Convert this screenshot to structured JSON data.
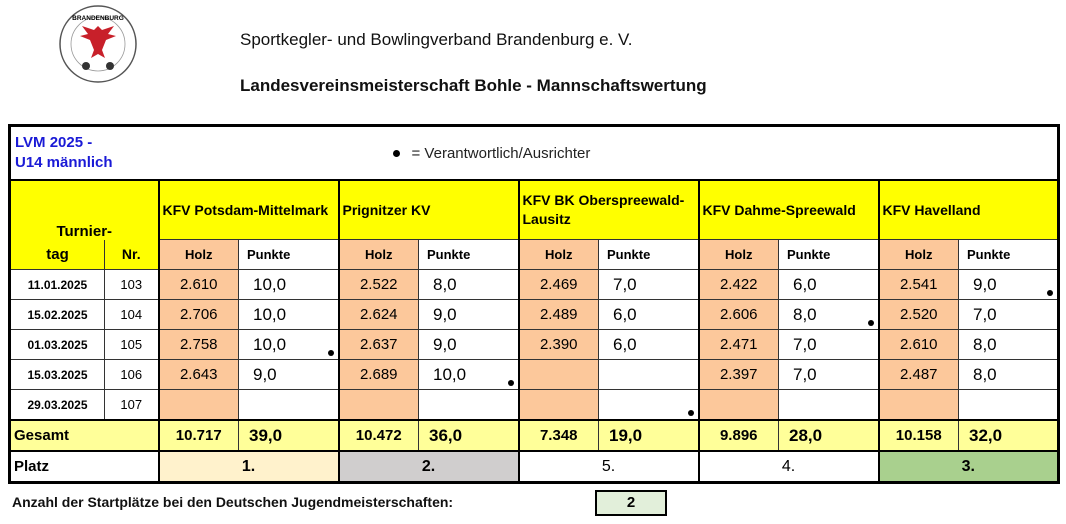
{
  "header": {
    "logo_text": "BRANDENBURG",
    "logo_ring": "Sportkegler- und Bowlingverband e.V.",
    "org": "Sportkegler- und Bowlingverband Brandenburg e. V.",
    "title": "Landesvereinsmeisterschaft Bohle - Mannschaftswertung"
  },
  "table": {
    "caption_line1": "LVM 2025 -",
    "caption_line2": "U14 männlich",
    "legend": "= Verantwortlich/Ausrichter",
    "col_turnier": "Turnier-",
    "col_tag": "tag",
    "col_nr": "Nr.",
    "col_holz": "Holz",
    "col_punkte": "Punkte",
    "teams": [
      "KFV Potsdam-Mittelmark",
      "Prignitzer KV",
      "KFV BK Oberspreewald-Lausitz",
      "KFV Dahme-Spreewald",
      "KFV Havelland"
    ],
    "rows": [
      {
        "date": "11.01.2025",
        "nr": "103",
        "cells": [
          [
            "2.610",
            "10,0"
          ],
          [
            "2.522",
            "8,0"
          ],
          [
            "2.469",
            "7,0"
          ],
          [
            "2.422",
            "6,0"
          ],
          [
            "2.541",
            "9,0"
          ]
        ],
        "host": 4
      },
      {
        "date": "15.02.2025",
        "nr": "104",
        "cells": [
          [
            "2.706",
            "10,0"
          ],
          [
            "2.624",
            "9,0"
          ],
          [
            "2.489",
            "6,0"
          ],
          [
            "2.606",
            "8,0"
          ],
          [
            "2.520",
            "7,0"
          ]
        ],
        "host": 3
      },
      {
        "date": "01.03.2025",
        "nr": "105",
        "cells": [
          [
            "2.758",
            "10,0"
          ],
          [
            "2.637",
            "9,0"
          ],
          [
            "2.390",
            "6,0"
          ],
          [
            "2.471",
            "7,0"
          ],
          [
            "2.610",
            "8,0"
          ]
        ],
        "host": 0
      },
      {
        "date": "15.03.2025",
        "nr": "106",
        "cells": [
          [
            "2.643",
            "9,0"
          ],
          [
            "2.689",
            "10,0"
          ],
          [
            "",
            ""
          ],
          [
            "2.397",
            "7,0"
          ],
          [
            "2.487",
            "8,0"
          ]
        ],
        "host": 1
      },
      {
        "date": "29.03.2025",
        "nr": "107",
        "cells": [
          [
            "",
            ""
          ],
          [
            "",
            ""
          ],
          [
            "",
            ""
          ],
          [
            "",
            ""
          ],
          [
            "",
            ""
          ]
        ],
        "host": 2
      }
    ],
    "gesamt_label": "Gesamt",
    "gesamt": [
      [
        "10.717",
        "39,0"
      ],
      [
        "10.472",
        "36,0"
      ],
      [
        "7.348",
        "19,0"
      ],
      [
        "9.896",
        "28,0"
      ],
      [
        "10.158",
        "32,0"
      ]
    ],
    "platz_label": "Platz",
    "platz": [
      "1.",
      "2.",
      "5.",
      "4.",
      "3."
    ],
    "platz_colors": [
      "#fff2cc",
      "#d0cece",
      "#ffffff",
      "#ffffff",
      "#a9d08e"
    ]
  },
  "footer": {
    "label": "Anzahl der Startplätze bei den Deutschen Jugendmeisterschaften:",
    "value": "2"
  }
}
